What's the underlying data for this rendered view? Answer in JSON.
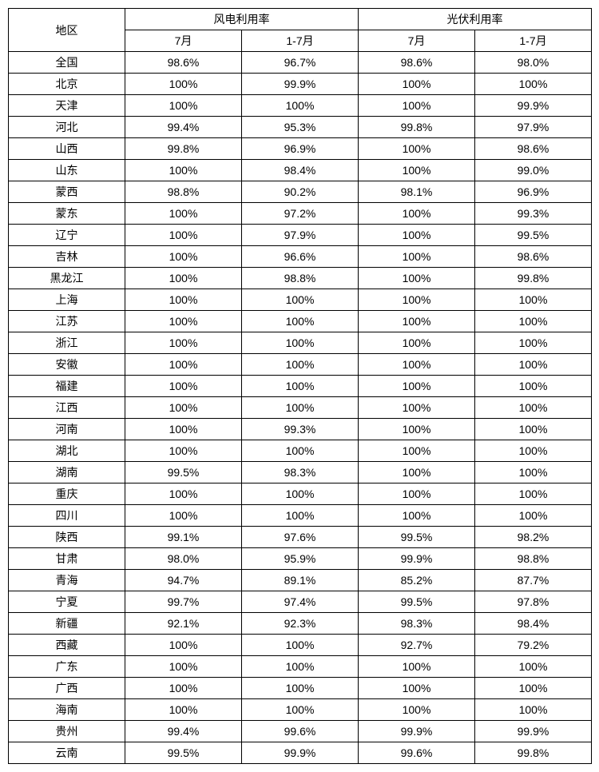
{
  "table": {
    "type": "table",
    "border_color": "#000000",
    "background_color": "#ffffff",
    "text_color": "#000000",
    "font_size": 14,
    "headers": {
      "region": "地区",
      "group1": "风电利用率",
      "group2": "光伏利用率",
      "sub1": "7月",
      "sub2": "1-7月",
      "sub3": "7月",
      "sub4": "1-7月"
    },
    "rows": [
      {
        "region": "全国",
        "c1": "98.6%",
        "c2": "96.7%",
        "c3": "98.6%",
        "c4": "98.0%"
      },
      {
        "region": "北京",
        "c1": "100%",
        "c2": "99.9%",
        "c3": "100%",
        "c4": "100%"
      },
      {
        "region": "天津",
        "c1": "100%",
        "c2": "100%",
        "c3": "100%",
        "c4": "99.9%"
      },
      {
        "region": "河北",
        "c1": "99.4%",
        "c2": "95.3%",
        "c3": "99.8%",
        "c4": "97.9%"
      },
      {
        "region": "山西",
        "c1": "99.8%",
        "c2": "96.9%",
        "c3": "100%",
        "c4": "98.6%"
      },
      {
        "region": "山东",
        "c1": "100%",
        "c2": "98.4%",
        "c3": "100%",
        "c4": "99.0%"
      },
      {
        "region": "蒙西",
        "c1": "98.8%",
        "c2": "90.2%",
        "c3": "98.1%",
        "c4": "96.9%"
      },
      {
        "region": "蒙东",
        "c1": "100%",
        "c2": "97.2%",
        "c3": "100%",
        "c4": "99.3%"
      },
      {
        "region": "辽宁",
        "c1": "100%",
        "c2": "97.9%",
        "c3": "100%",
        "c4": "99.5%"
      },
      {
        "region": "吉林",
        "c1": "100%",
        "c2": "96.6%",
        "c3": "100%",
        "c4": "98.6%"
      },
      {
        "region": "黑龙江",
        "c1": "100%",
        "c2": "98.8%",
        "c3": "100%",
        "c4": "99.8%"
      },
      {
        "region": "上海",
        "c1": "100%",
        "c2": "100%",
        "c3": "100%",
        "c4": "100%"
      },
      {
        "region": "江苏",
        "c1": "100%",
        "c2": "100%",
        "c3": "100%",
        "c4": "100%"
      },
      {
        "region": "浙江",
        "c1": "100%",
        "c2": "100%",
        "c3": "100%",
        "c4": "100%"
      },
      {
        "region": "安徽",
        "c1": "100%",
        "c2": "100%",
        "c3": "100%",
        "c4": "100%"
      },
      {
        "region": "福建",
        "c1": "100%",
        "c2": "100%",
        "c3": "100%",
        "c4": "100%"
      },
      {
        "region": "江西",
        "c1": "100%",
        "c2": "100%",
        "c3": "100%",
        "c4": "100%"
      },
      {
        "region": "河南",
        "c1": "100%",
        "c2": "99.3%",
        "c3": "100%",
        "c4": "100%"
      },
      {
        "region": "湖北",
        "c1": "100%",
        "c2": "100%",
        "c3": "100%",
        "c4": "100%"
      },
      {
        "region": "湖南",
        "c1": "99.5%",
        "c2": "98.3%",
        "c3": "100%",
        "c4": "100%"
      },
      {
        "region": "重庆",
        "c1": "100%",
        "c2": "100%",
        "c3": "100%",
        "c4": "100%"
      },
      {
        "region": "四川",
        "c1": "100%",
        "c2": "100%",
        "c3": "100%",
        "c4": "100%"
      },
      {
        "region": "陕西",
        "c1": "99.1%",
        "c2": "97.6%",
        "c3": "99.5%",
        "c4": "98.2%"
      },
      {
        "region": "甘肃",
        "c1": "98.0%",
        "c2": "95.9%",
        "c3": "99.9%",
        "c4": "98.8%"
      },
      {
        "region": "青海",
        "c1": "94.7%",
        "c2": "89.1%",
        "c3": "85.2%",
        "c4": "87.7%"
      },
      {
        "region": "宁夏",
        "c1": "99.7%",
        "c2": "97.4%",
        "c3": "99.5%",
        "c4": "97.8%"
      },
      {
        "region": "新疆",
        "c1": "92.1%",
        "c2": "92.3%",
        "c3": "98.3%",
        "c4": "98.4%"
      },
      {
        "region": "西藏",
        "c1": "100%",
        "c2": "100%",
        "c3": "92.7%",
        "c4": "79.2%"
      },
      {
        "region": "广东",
        "c1": "100%",
        "c2": "100%",
        "c3": "100%",
        "c4": "100%"
      },
      {
        "region": "广西",
        "c1": "100%",
        "c2": "100%",
        "c3": "100%",
        "c4": "100%"
      },
      {
        "region": "海南",
        "c1": "100%",
        "c2": "100%",
        "c3": "100%",
        "c4": "100%"
      },
      {
        "region": "贵州",
        "c1": "99.4%",
        "c2": "99.6%",
        "c3": "99.9%",
        "c4": "99.9%"
      },
      {
        "region": "云南",
        "c1": "99.5%",
        "c2": "99.9%",
        "c3": "99.6%",
        "c4": "99.8%"
      }
    ]
  }
}
